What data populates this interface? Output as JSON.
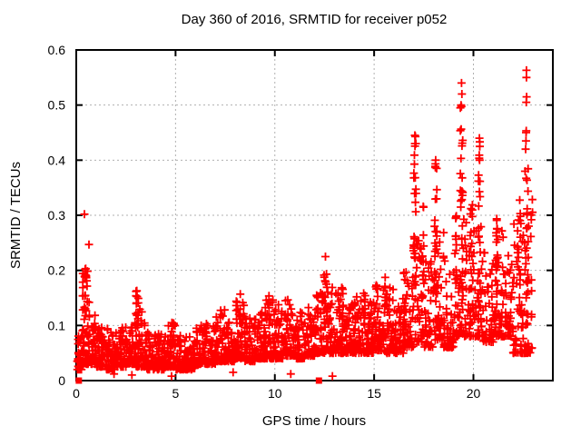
{
  "chart": {
    "title": "Day 360 of 2016, SRMTID for receiver p052",
    "xlabel": "GPS time / hours",
    "ylabel": "SRMTID / TECUs",
    "marker_color": "#ff0000",
    "grid_color": "#b0b0b0",
    "axis_color": "#000000",
    "background": "#ffffff"
  },
  "chart_data": {
    "type": "scatter",
    "title": "Day 360 of 2016, SRMTID for receiver p052",
    "xlabel": "GPS time / hours",
    "ylabel": "SRMTID / TECUs",
    "xlim": [
      0,
      24
    ],
    "ylim": [
      0,
      0.6
    ],
    "xticks": [
      0,
      5,
      10,
      15,
      20
    ],
    "yticks": [
      0,
      0.1,
      0.2,
      0.3,
      0.4,
      0.5,
      0.6
    ],
    "grid": true,
    "legend": "none",
    "marker": "+",
    "marker_color": "#ff0000",
    "seed": 42,
    "band_bins": [
      [
        0.05,
        0.3,
        25,
        0.02,
        0.1
      ],
      [
        0.3,
        0.5,
        30,
        0.03,
        0.155
      ],
      [
        0.5,
        0.75,
        30,
        0.03,
        0.145
      ],
      [
        0.75,
        1.0,
        30,
        0.03,
        0.12
      ],
      [
        1.0,
        1.5,
        55,
        0.025,
        0.1
      ],
      [
        1.5,
        2.0,
        55,
        0.02,
        0.095
      ],
      [
        2.0,
        2.5,
        55,
        0.025,
        0.1
      ],
      [
        2.5,
        3.0,
        55,
        0.03,
        0.115
      ],
      [
        3.0,
        3.5,
        55,
        0.025,
        0.13
      ],
      [
        3.5,
        4.0,
        55,
        0.02,
        0.09
      ],
      [
        4.0,
        4.5,
        55,
        0.02,
        0.085
      ],
      [
        4.5,
        5.0,
        55,
        0.025,
        0.105
      ],
      [
        5.0,
        5.5,
        50,
        0.02,
        0.085
      ],
      [
        5.5,
        6.0,
        50,
        0.02,
        0.08
      ],
      [
        6.0,
        6.5,
        50,
        0.03,
        0.1
      ],
      [
        6.5,
        7.0,
        50,
        0.03,
        0.105
      ],
      [
        7.0,
        7.5,
        50,
        0.035,
        0.13
      ],
      [
        7.5,
        8.0,
        50,
        0.035,
        0.115
      ],
      [
        8.0,
        8.5,
        50,
        0.04,
        0.15
      ],
      [
        8.5,
        9.0,
        50,
        0.035,
        0.115
      ],
      [
        9.0,
        9.5,
        50,
        0.04,
        0.125
      ],
      [
        9.5,
        10.0,
        50,
        0.04,
        0.15
      ],
      [
        10.0,
        10.5,
        50,
        0.04,
        0.14
      ],
      [
        10.5,
        11.0,
        50,
        0.045,
        0.15
      ],
      [
        11.0,
        11.5,
        50,
        0.04,
        0.125
      ],
      [
        11.5,
        12.0,
        50,
        0.045,
        0.135
      ],
      [
        12.0,
        12.5,
        50,
        0.05,
        0.16
      ],
      [
        12.5,
        13.0,
        50,
        0.05,
        0.175
      ],
      [
        13.0,
        13.5,
        50,
        0.05,
        0.17
      ],
      [
        13.5,
        14.0,
        50,
        0.05,
        0.145
      ],
      [
        14.0,
        14.5,
        50,
        0.05,
        0.16
      ],
      [
        14.5,
        15.0,
        50,
        0.05,
        0.155
      ],
      [
        15.0,
        15.5,
        50,
        0.055,
        0.18
      ],
      [
        15.5,
        16.0,
        50,
        0.05,
        0.175
      ],
      [
        16.0,
        16.5,
        45,
        0.05,
        0.15
      ],
      [
        16.5,
        17.0,
        45,
        0.06,
        0.2
      ],
      [
        17.0,
        17.5,
        42,
        0.07,
        0.26
      ],
      [
        17.5,
        18.0,
        42,
        0.06,
        0.22
      ],
      [
        18.0,
        18.5,
        42,
        0.07,
        0.27
      ],
      [
        18.5,
        19.0,
        42,
        0.06,
        0.22
      ],
      [
        19.0,
        19.5,
        42,
        0.08,
        0.3
      ],
      [
        19.5,
        20.0,
        42,
        0.08,
        0.3
      ],
      [
        20.0,
        20.5,
        42,
        0.08,
        0.3
      ],
      [
        20.5,
        21.0,
        42,
        0.07,
        0.24
      ],
      [
        21.0,
        21.5,
        42,
        0.08,
        0.28
      ],
      [
        21.5,
        22.0,
        42,
        0.08,
        0.24
      ],
      [
        22.0,
        22.5,
        45,
        0.05,
        0.3
      ],
      [
        22.5,
        23.0,
        45,
        0.05,
        0.33
      ]
    ],
    "columns": [
      [
        0.45,
        0.25,
        16,
        0.1,
        0.23
      ],
      [
        3.07,
        0.12,
        10,
        0.1,
        0.163
      ],
      [
        8.3,
        0.18,
        8,
        0.1,
        0.16
      ],
      [
        9.7,
        0.12,
        7,
        0.1,
        0.155
      ],
      [
        12.55,
        0.15,
        12,
        0.12,
        0.225
      ],
      [
        13.4,
        0.12,
        8,
        0.11,
        0.175
      ],
      [
        14.5,
        0.15,
        7,
        0.11,
        0.165
      ],
      [
        15.6,
        0.15,
        9,
        0.12,
        0.19
      ],
      [
        16.55,
        0.12,
        8,
        0.12,
        0.2
      ],
      [
        17.05,
        0.15,
        26,
        0.12,
        0.445
      ],
      [
        17.45,
        0.1,
        10,
        0.15,
        0.32
      ],
      [
        18.1,
        0.12,
        20,
        0.12,
        0.4
      ],
      [
        19.1,
        0.1,
        10,
        0.15,
        0.3
      ],
      [
        19.4,
        0.12,
        26,
        0.15,
        0.5
      ],
      [
        19.9,
        0.12,
        12,
        0.12,
        0.35
      ],
      [
        20.3,
        0.12,
        20,
        0.12,
        0.44
      ],
      [
        21.2,
        0.12,
        12,
        0.12,
        0.3
      ],
      [
        22.3,
        0.15,
        14,
        0.12,
        0.35
      ],
      [
        22.7,
        0.12,
        20,
        0.12,
        0.46
      ]
    ],
    "outliers": [
      [
        0.41,
        0.302
      ],
      [
        0.64,
        0.247
      ],
      [
        0.45,
        0.202
      ],
      [
        0.5,
        0.19
      ],
      [
        3.05,
        0.163
      ],
      [
        12.55,
        0.225
      ],
      [
        17.05,
        0.445
      ],
      [
        17.1,
        0.43
      ],
      [
        18.1,
        0.4
      ],
      [
        18.15,
        0.385
      ],
      [
        19.4,
        0.54
      ],
      [
        19.42,
        0.52
      ],
      [
        19.38,
        0.5
      ],
      [
        20.3,
        0.44
      ],
      [
        20.32,
        0.425
      ],
      [
        22.67,
        0.563
      ],
      [
        22.67,
        0.55
      ],
      [
        22.68,
        0.515
      ],
      [
        22.66,
        0.505
      ],
      [
        22.65,
        0.45
      ],
      [
        22.63,
        0.42
      ],
      [
        22.6,
        0.38
      ],
      [
        1.9,
        0.012
      ],
      [
        2.8,
        0.01
      ],
      [
        4.8,
        0.008
      ],
      [
        7.9,
        0.015
      ],
      [
        10.8,
        0.012
      ],
      [
        12.9,
        0.008
      ]
    ],
    "zero_squares": [
      [
        0.13,
        0
      ],
      [
        12.22,
        0
      ]
    ]
  }
}
